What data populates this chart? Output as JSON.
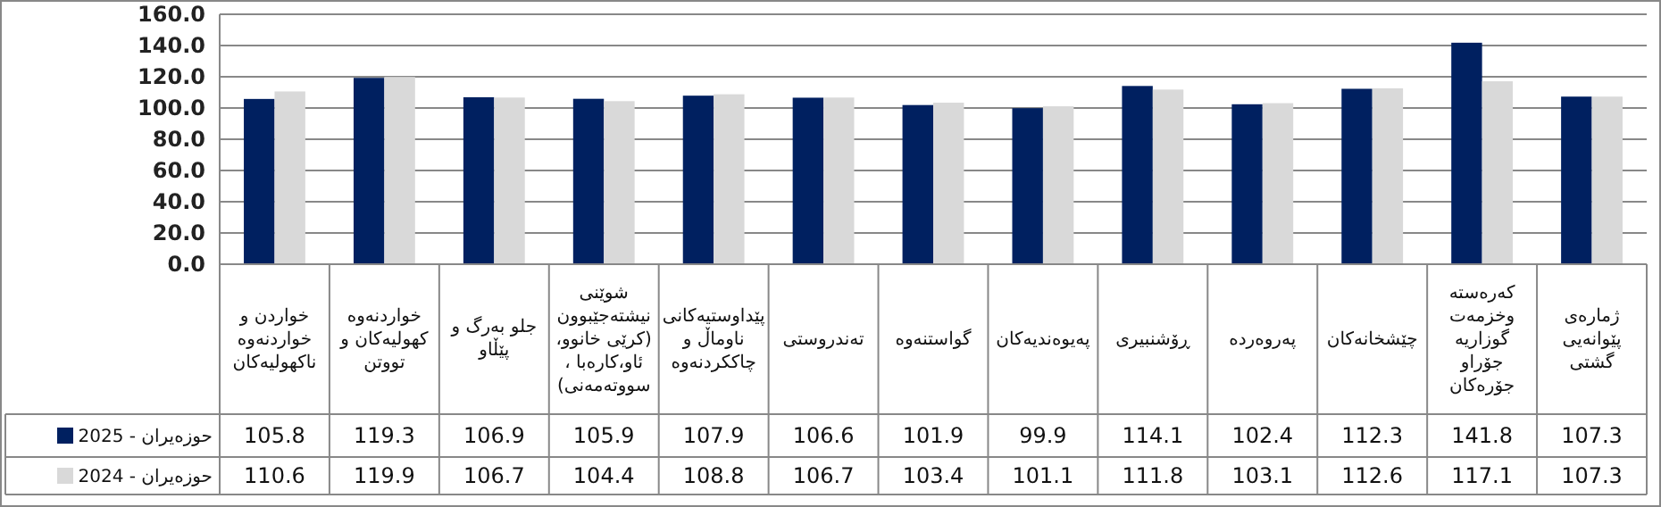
{
  "chart_data": {
    "type": "bar",
    "categories": [
      "خواردن  و خواردنەوە ناکهولیەکان",
      "خواردنەوە کهولیەکان و تووتن",
      "جلو بەرگ و پێڵاو",
      "شوێنی نیشتەجێبوون (کرێی خانوو، ئاو،کارەبا ، سووتەمەنی)",
      "پێداوستیەکانی ناوماڵ و چاککردنەوە",
      "تەندروستی",
      "گواستنەوە",
      "پەیوەندیەکان",
      "ڕۆشنبیری",
      "پەروەردە",
      "چێشخانەکان",
      "کەرەستە وخزمەت گوزاریە جۆراو جۆرەکان",
      "ژمارەی پێوانەیی گشتی"
    ],
    "series": [
      {
        "name": "حوزەیران - 2025",
        "color": "#002060",
        "values": [
          105.8,
          119.3,
          106.9,
          105.9,
          107.9,
          106.6,
          101.9,
          99.9,
          114.1,
          102.4,
          112.3,
          141.8,
          107.3
        ]
      },
      {
        "name": "حوزەیران - 2024",
        "color": "#d9d9d9",
        "values": [
          110.6,
          119.9,
          106.7,
          104.4,
          108.8,
          106.7,
          103.4,
          101.1,
          111.8,
          103.1,
          112.6,
          117.1,
          107.3
        ]
      }
    ],
    "ylim": [
      0,
      160
    ],
    "yticks": [
      {
        "value": 0,
        "label": "0.0"
      },
      {
        "value": 20,
        "label": "20.0"
      },
      {
        "value": 40,
        "label": "40.0"
      },
      {
        "value": 60,
        "label": "60.0"
      },
      {
        "value": 80,
        "label": "80.0"
      },
      {
        "value": 100,
        "label": "100.0"
      },
      {
        "value": 120,
        "label": "120.0"
      },
      {
        "value": 140,
        "label": "140.0"
      },
      {
        "value": 160,
        "label": "160.0"
      }
    ],
    "grid": "y",
    "legend": "bottom",
    "data_labels": true
  }
}
